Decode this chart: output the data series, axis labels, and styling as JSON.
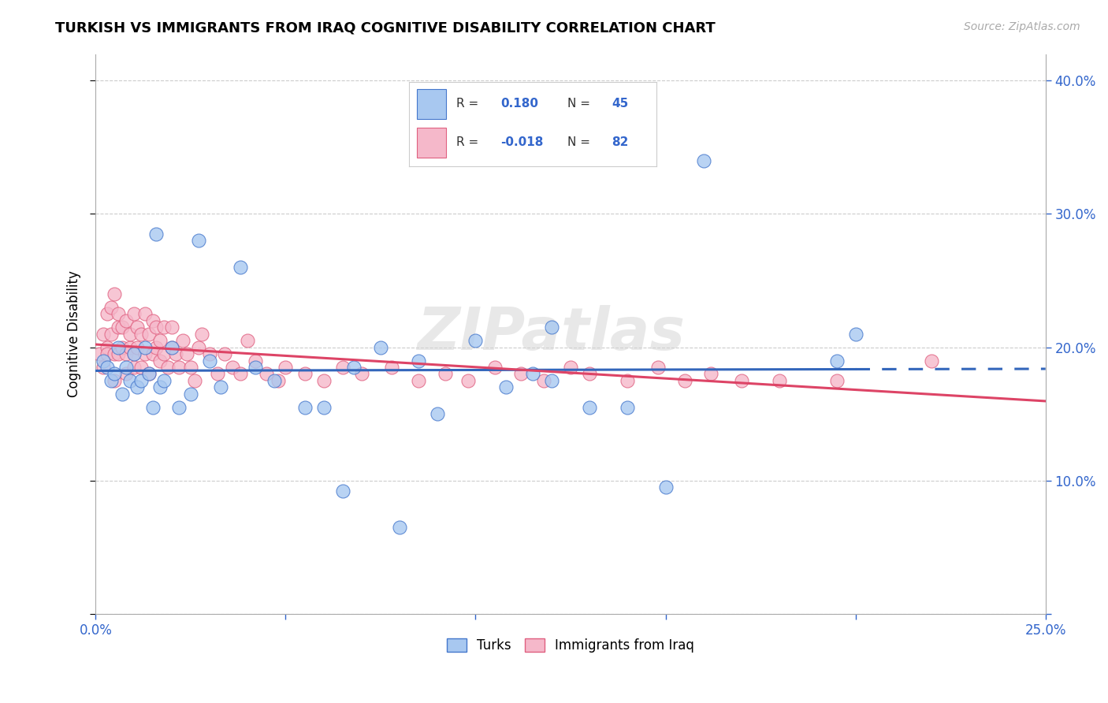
{
  "title": "TURKISH VS IMMIGRANTS FROM IRAQ COGNITIVE DISABILITY CORRELATION CHART",
  "source": "Source: ZipAtlas.com",
  "ylabel": "Cognitive Disability",
  "xlim": [
    0.0,
    0.25
  ],
  "ylim": [
    0.0,
    0.42
  ],
  "xticks": [
    0.0,
    0.05,
    0.1,
    0.15,
    0.2,
    0.25
  ],
  "yticks": [
    0.0,
    0.1,
    0.2,
    0.3,
    0.4
  ],
  "right_ytick_labels": [
    "",
    "10.0%",
    "20.0%",
    "30.0%",
    "40.0%"
  ],
  "xtick_labels": [
    "0.0%",
    "",
    "",
    "",
    "",
    "25.0%"
  ],
  "turks_color": "#a8c8f0",
  "iraq_color": "#f5b8ca",
  "turks_edge_color": "#4477cc",
  "iraq_edge_color": "#e06080",
  "turks_line_color": "#3366bb",
  "iraq_line_color": "#dd4466",
  "R_turks": 0.18,
  "N_turks": 45,
  "R_iraq": -0.018,
  "N_iraq": 82,
  "watermark": "ZIPatlas",
  "turks_x": [
    0.002,
    0.003,
    0.004,
    0.005,
    0.006,
    0.007,
    0.008,
    0.009,
    0.01,
    0.011,
    0.012,
    0.013,
    0.014,
    0.015,
    0.016,
    0.017,
    0.018,
    0.02,
    0.022,
    0.025,
    0.027,
    0.03,
    0.033,
    0.038,
    0.042,
    0.047,
    0.055,
    0.06,
    0.068,
    0.075,
    0.08,
    0.09,
    0.1,
    0.108,
    0.115,
    0.12,
    0.13,
    0.14,
    0.15,
    0.16,
    0.195,
    0.2,
    0.12,
    0.065,
    0.085
  ],
  "turks_y": [
    0.19,
    0.185,
    0.175,
    0.18,
    0.2,
    0.165,
    0.185,
    0.175,
    0.195,
    0.17,
    0.175,
    0.2,
    0.18,
    0.155,
    0.285,
    0.17,
    0.175,
    0.2,
    0.155,
    0.165,
    0.28,
    0.19,
    0.17,
    0.26,
    0.185,
    0.175,
    0.155,
    0.155,
    0.185,
    0.2,
    0.065,
    0.15,
    0.205,
    0.17,
    0.18,
    0.175,
    0.155,
    0.155,
    0.095,
    0.34,
    0.19,
    0.21,
    0.215,
    0.092,
    0.19
  ],
  "iraq_x": [
    0.001,
    0.002,
    0.002,
    0.003,
    0.003,
    0.003,
    0.004,
    0.004,
    0.005,
    0.005,
    0.005,
    0.006,
    0.006,
    0.006,
    0.007,
    0.007,
    0.008,
    0.008,
    0.008,
    0.009,
    0.009,
    0.01,
    0.01,
    0.01,
    0.011,
    0.011,
    0.012,
    0.012,
    0.013,
    0.013,
    0.014,
    0.014,
    0.015,
    0.015,
    0.016,
    0.016,
    0.017,
    0.017,
    0.018,
    0.018,
    0.019,
    0.02,
    0.02,
    0.021,
    0.022,
    0.023,
    0.024,
    0.025,
    0.026,
    0.027,
    0.028,
    0.03,
    0.032,
    0.034,
    0.036,
    0.038,
    0.04,
    0.042,
    0.045,
    0.048,
    0.05,
    0.055,
    0.06,
    0.065,
    0.07,
    0.078,
    0.085,
    0.092,
    0.098,
    0.105,
    0.112,
    0.118,
    0.125,
    0.13,
    0.14,
    0.148,
    0.155,
    0.162,
    0.17,
    0.18,
    0.195,
    0.22
  ],
  "iraq_y": [
    0.195,
    0.21,
    0.185,
    0.2,
    0.225,
    0.195,
    0.21,
    0.23,
    0.195,
    0.24,
    0.175,
    0.215,
    0.195,
    0.225,
    0.2,
    0.215,
    0.195,
    0.22,
    0.18,
    0.2,
    0.21,
    0.195,
    0.225,
    0.185,
    0.2,
    0.215,
    0.185,
    0.21,
    0.195,
    0.225,
    0.18,
    0.21,
    0.195,
    0.22,
    0.2,
    0.215,
    0.19,
    0.205,
    0.195,
    0.215,
    0.185,
    0.2,
    0.215,
    0.195,
    0.185,
    0.205,
    0.195,
    0.185,
    0.175,
    0.2,
    0.21,
    0.195,
    0.18,
    0.195,
    0.185,
    0.18,
    0.205,
    0.19,
    0.18,
    0.175,
    0.185,
    0.18,
    0.175,
    0.185,
    0.18,
    0.185,
    0.175,
    0.18,
    0.175,
    0.185,
    0.18,
    0.175,
    0.185,
    0.18,
    0.175,
    0.185,
    0.175,
    0.18,
    0.175,
    0.175,
    0.175,
    0.19
  ]
}
